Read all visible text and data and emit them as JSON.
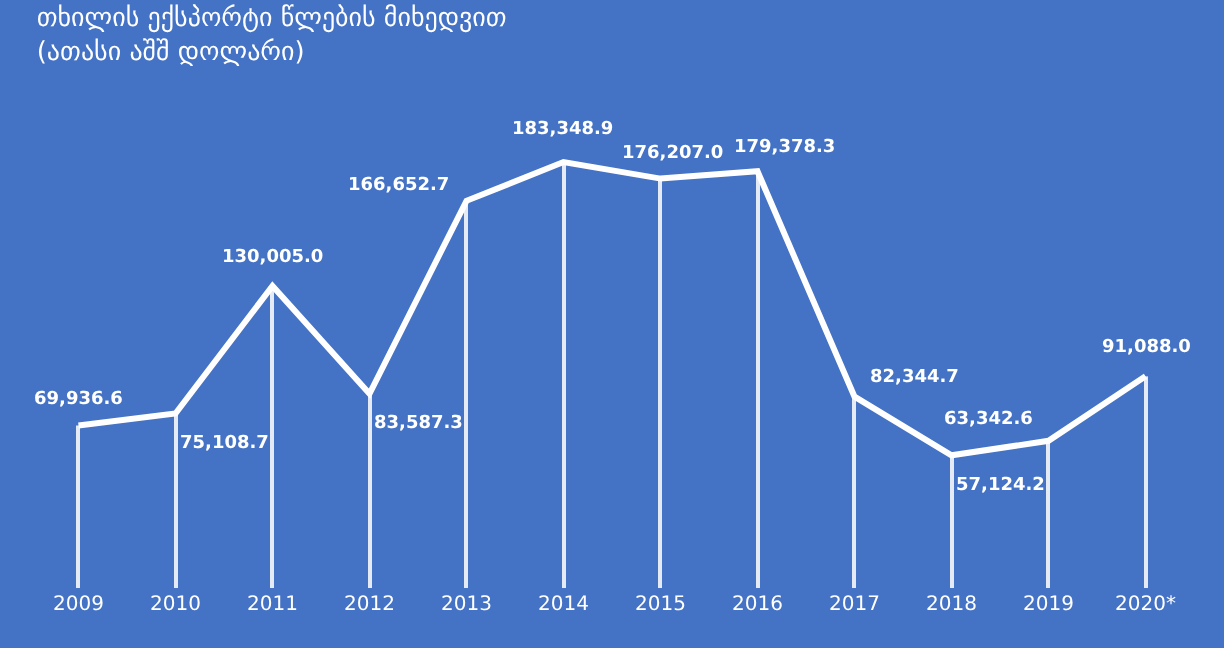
{
  "chart_data": {
    "type": "line",
    "title": "თხილის ექსპორტი წლების მიხედვით",
    "subtitle": "(ათასი აშშ დოლარი)",
    "categories": [
      "2009",
      "2010",
      "2011",
      "2012",
      "2013",
      "2014",
      "2015",
      "2016",
      "2017",
      "2018",
      "2019",
      "2020*"
    ],
    "series": [
      {
        "type": "bar",
        "color": "#e4eaf6",
        "values": [
          69936.6,
          75108.7,
          130005.0,
          83587.3,
          166652.7,
          183348.9,
          176207.0,
          179378.3,
          82344.7,
          57124.2,
          63342.6,
          91088.0
        ]
      },
      {
        "color": "#ffffff",
        "values": [
          69936.6,
          75108.7,
          130005.0,
          83587.3,
          166652.7,
          183348.9,
          176207.0,
          179378.3,
          82344.7,
          57124.2,
          63342.6,
          91088.0
        ],
        "value_labels": [
          "69,936.6",
          "75,108.7",
          "130,005.0",
          "83,587.3",
          "166,652.7",
          "183,348.9",
          "176,207.0",
          "179,378.3",
          "82,344.7",
          "57,124.2",
          "63,342.6",
          "91,088.0"
        ]
      }
    ],
    "tick_labels": "x",
    "grid": false,
    "marker": "none",
    "line_style": "solid"
  }
}
